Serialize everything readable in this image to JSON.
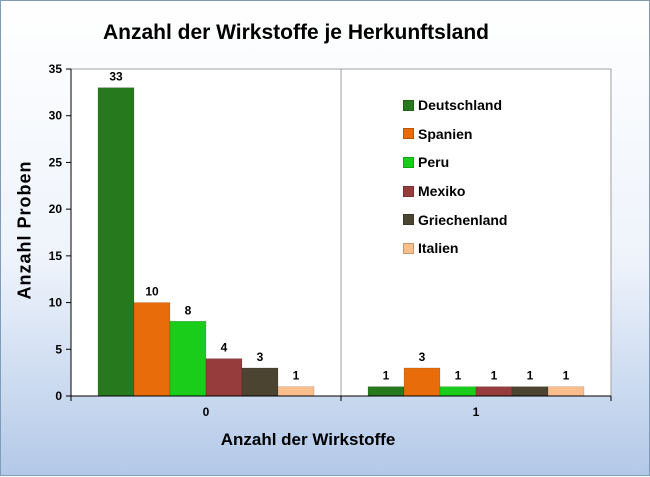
{
  "chart_data": {
    "type": "bar",
    "title": "Anzahl der Wirkstoffe je Herkunftsland",
    "xlabel": "Anzahl der Wirkstoffe",
    "ylabel": "Anzahl  Proben",
    "categories": [
      "0",
      "1"
    ],
    "ylim": [
      0,
      35
    ],
    "yticks": [
      "0",
      "5",
      "10",
      "15",
      "20",
      "25",
      "30",
      "35"
    ],
    "grid": false,
    "legend_position": "top-right",
    "series": [
      {
        "name": "Deutschland",
        "color": "#267a1d",
        "values": [
          33,
          1
        ]
      },
      {
        "name": "Spanien",
        "color": "#e86d0a",
        "values": [
          10,
          3
        ]
      },
      {
        "name": "Peru",
        "color": "#1acd1a",
        "values": [
          8,
          1
        ]
      },
      {
        "name": "Mexiko",
        "color": "#963c3c",
        "values": [
          4,
          1
        ]
      },
      {
        "name": "Griechenland",
        "color": "#4b4431",
        "values": [
          3,
          1
        ]
      },
      {
        "name": "Italien",
        "color": "#f9be8c",
        "values": [
          1,
          1
        ]
      }
    ]
  }
}
